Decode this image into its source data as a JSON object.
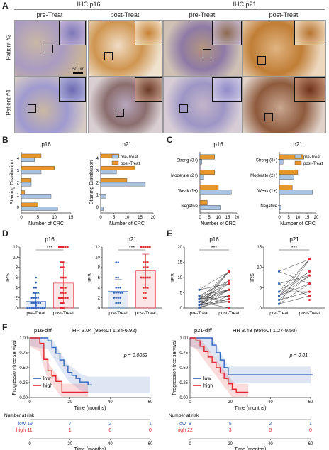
{
  "panels": {
    "A": "A",
    "B": "B",
    "C": "C",
    "D": "D",
    "E": "E",
    "F": "F"
  },
  "header": {
    "p16": "IHC p16",
    "p21": "IHC p21",
    "pre": "pre-Treat",
    "post": "post-Treat"
  },
  "rows": {
    "p3": "Patient #3",
    "p4": "Patient #4"
  },
  "scalebar": "50 μm",
  "colors": {
    "pre": "#a9c4e3",
    "post": "#e7962c",
    "low": "#2f63b8",
    "high": "#e0262e",
    "grey": "#555555"
  },
  "chart_data": [
    {
      "id": "B-p16",
      "type": "bar",
      "orientation": "horizontal",
      "title": "p16",
      "categories": [
        "0",
        "1",
        "2",
        "3",
        "4"
      ],
      "ylabel": "Staining Distribution",
      "xlabel": "Number of CRC",
      "xlim": [
        0,
        15
      ],
      "xticks": [
        0,
        5,
        10,
        15
      ],
      "series": [
        {
          "name": "pre-Treat",
          "values": [
            11,
            9,
            3,
            6,
            4
          ]
        },
        {
          "name": "post-Treat",
          "values": [
            5,
            1,
            3,
            10,
            6
          ]
        }
      ]
    },
    {
      "id": "B-p21",
      "type": "bar",
      "orientation": "horizontal",
      "title": "p21",
      "categories": [
        "0",
        "1",
        "2",
        "3",
        "4"
      ],
      "ylabel": "Staining Distribution",
      "xlabel": "Number of CRC",
      "xlim": [
        0,
        20
      ],
      "xticks": [
        0,
        5,
        10,
        15,
        20
      ],
      "series": [
        {
          "name": "pre-Treat",
          "values": [
            1,
            2,
            17,
            6,
            0
          ]
        },
        {
          "name": "post-Treat",
          "values": [
            0,
            0,
            10,
            13,
            7
          ]
        }
      ],
      "legend": [
        "pre-Treat",
        "post-Treat"
      ]
    },
    {
      "id": "C-p16",
      "type": "bar",
      "orientation": "horizontal",
      "title": "p16",
      "categories": [
        "Negative",
        "Weak (1+)",
        "Moderate (2+)",
        "Strong (3+)"
      ],
      "xlabel": "Number of CRC",
      "xlim": [
        0,
        20
      ],
      "xticks": [
        0,
        5,
        10,
        15,
        20
      ],
      "series": [
        {
          "name": "pre-Treat",
          "values": [
            11,
            17,
            2,
            1
          ]
        },
        {
          "name": "post-Treat",
          "values": [
            4,
            10,
            8,
            8
          ]
        }
      ]
    },
    {
      "id": "C-p21",
      "type": "bar",
      "orientation": "horizontal",
      "title": "p21",
      "categories": [
        "Negative",
        "Weak (1+)",
        "Moderate (2+)",
        "Strong (3+)"
      ],
      "xlabel": "Number of CRC",
      "xlim": [
        0,
        20
      ],
      "xticks": [
        0,
        5,
        10,
        15,
        20
      ],
      "series": [
        {
          "name": "pre-Treat",
          "values": [
            1,
            18,
            8,
            2
          ]
        },
        {
          "name": "post-Treat",
          "values": [
            0,
            7,
            10,
            13
          ]
        }
      ],
      "legend": [
        "pre-Treat",
        "post-Treat"
      ]
    },
    {
      "id": "D-p16",
      "type": "scatter",
      "title": "p16",
      "ylabel": "IRS",
      "ylim": [
        0,
        12
      ],
      "yticks": [
        0,
        2,
        4,
        6,
        8,
        10,
        12
      ],
      "categories": [
        "pre-Treat",
        "post-Treat"
      ],
      "sig": "***",
      "means": [
        1.3,
        4.9
      ],
      "sd": [
        1.6,
        4.0
      ],
      "points": [
        [
          0,
          0,
          0,
          0,
          0,
          0,
          0,
          0,
          0,
          0.5,
          1,
          1,
          1,
          1,
          1,
          2,
          2,
          2,
          2,
          3,
          3,
          3,
          4,
          4,
          5,
          6
        ],
        [
          0,
          0,
          1,
          1,
          2,
          2,
          2,
          2,
          2,
          3,
          3,
          3,
          4,
          4,
          4,
          6,
          6,
          6,
          8,
          8,
          9,
          9,
          12,
          12,
          12,
          12,
          12
        ]
      ]
    },
    {
      "id": "D-p21",
      "type": "scatter",
      "title": "p21",
      "ylabel": "IRS",
      "ylim": [
        0,
        12
      ],
      "yticks": [
        0,
        2,
        4,
        6,
        8,
        10,
        12
      ],
      "categories": [
        "pre-Treat",
        "post-Treat"
      ],
      "sig": "***",
      "means": [
        3.3,
        7.3
      ],
      "sd": [
        2.3,
        3.3
      ],
      "points": [
        [
          1,
          1,
          1,
          2,
          2,
          2,
          2,
          3,
          3,
          3,
          3,
          3,
          4,
          4,
          4,
          6,
          6,
          9,
          9
        ],
        [
          2,
          2,
          3,
          3,
          4,
          4,
          4,
          6,
          6,
          6,
          6,
          6,
          8,
          8,
          8,
          9,
          9,
          9,
          12,
          12,
          12,
          12,
          12
        ]
      ]
    },
    {
      "id": "E-p16",
      "type": "line",
      "title": "p16",
      "ylabel": "IRS",
      "ylim": [
        0,
        20
      ],
      "yticks": [
        0,
        5,
        10,
        15,
        20
      ],
      "categories": [
        "pre-Treat",
        "post-Treat"
      ],
      "sig": "***",
      "pairs": [
        [
          0,
          12
        ],
        [
          0,
          9
        ],
        [
          0,
          6
        ],
        [
          0,
          4
        ],
        [
          1,
          12
        ],
        [
          1,
          8
        ],
        [
          1,
          3
        ],
        [
          2,
          6
        ],
        [
          2,
          9
        ],
        [
          2,
          4
        ],
        [
          3,
          12
        ],
        [
          3,
          6
        ],
        [
          3,
          8
        ],
        [
          4,
          9
        ],
        [
          4,
          2
        ],
        [
          4,
          6
        ],
        [
          6,
          12
        ],
        [
          6,
          8
        ],
        [
          1,
          2
        ],
        [
          2,
          0
        ],
        [
          0,
          3
        ],
        [
          3,
          4
        ],
        [
          2,
          12
        ],
        [
          1,
          6
        ]
      ]
    },
    {
      "id": "E-p21",
      "type": "line",
      "title": "p21",
      "ylabel": "IRS",
      "ylim": [
        0,
        15
      ],
      "yticks": [
        0,
        5,
        10,
        15
      ],
      "categories": [
        "pre-Treat",
        "post-Treat"
      ],
      "sig": "***",
      "pairs": [
        [
          1,
          12
        ],
        [
          1,
          6
        ],
        [
          2,
          8
        ],
        [
          2,
          4
        ],
        [
          3,
          12
        ],
        [
          3,
          9
        ],
        [
          3,
          6
        ],
        [
          4,
          9
        ],
        [
          4,
          12
        ],
        [
          6,
          8
        ],
        [
          6,
          3
        ],
        [
          9,
          12
        ],
        [
          9,
          6
        ],
        [
          2,
          2
        ],
        [
          1,
          3
        ],
        [
          4,
          4
        ],
        [
          3,
          8
        ]
      ]
    },
    {
      "id": "F-p16",
      "type": "line",
      "title": "p16-diff",
      "stat": "HR 3.04 (95%CI 1.34-6.92)",
      "pvalue": "p = 0.0053",
      "ylabel": "Progression-free survival",
      "xlabel": "Time (months)",
      "xlim": [
        0,
        60
      ],
      "xticks": [
        0,
        20,
        40,
        60
      ],
      "ylim": [
        0,
        1
      ],
      "yticks": [
        "0.00",
        "0.25",
        "0.50",
        "0.75",
        "1.00"
      ],
      "series": [
        {
          "name": "low",
          "x": [
            0,
            9,
            11,
            13,
            15,
            17,
            19,
            21,
            23,
            25,
            29,
            31
          ],
          "y": [
            1,
            0.95,
            0.84,
            0.74,
            0.63,
            0.53,
            0.42,
            0.37,
            0.32,
            0.26,
            0.21,
            0.21
          ]
        },
        {
          "name": "high",
          "x": [
            0,
            5,
            7,
            9,
            11,
            13,
            16,
            29
          ],
          "y": [
            1,
            0.91,
            0.64,
            0.45,
            0.36,
            0.27,
            0.09,
            0.09
          ]
        }
      ],
      "risk_title": "Number at risk",
      "risk_times": [
        0,
        20,
        40,
        60
      ],
      "risk": [
        {
          "name": "low",
          "values": [
            "19",
            "7",
            "2",
            "1"
          ]
        },
        {
          "name": "high",
          "values": [
            "11",
            "1",
            "0",
            "0"
          ]
        }
      ]
    },
    {
      "id": "F-p21",
      "type": "line",
      "title": "p21-diff",
      "stat": "HR 3.48 (95%CI 1.27-9.50)",
      "pvalue": "p = 0.01",
      "ylabel": "Progression-free survival",
      "xlabel": "Time (months)",
      "xlim": [
        0,
        60
      ],
      "xticks": [
        0,
        20,
        40,
        60
      ],
      "ylim": [
        0,
        1
      ],
      "yticks": [
        "0.00",
        "0.25",
        "0.50",
        "0.75",
        "1.00"
      ],
      "series": [
        {
          "name": "low",
          "x": [
            0,
            11,
            13,
            15,
            17,
            19,
            61
          ],
          "y": [
            1,
            0.88,
            0.75,
            0.63,
            0.5,
            0.38,
            0.38
          ]
        },
        {
          "name": "high",
          "x": [
            0,
            3,
            5,
            7,
            9,
            11,
            13,
            15,
            17,
            19,
            21,
            23,
            29
          ],
          "y": [
            1,
            0.95,
            0.86,
            0.77,
            0.68,
            0.59,
            0.5,
            0.41,
            0.32,
            0.23,
            0.14,
            0.09,
            0.09
          ]
        }
      ],
      "risk_title": "Number at risk",
      "risk_times": [
        0,
        20,
        40,
        60
      ],
      "risk": [
        {
          "name": "low",
          "values": [
            "8",
            "5",
            "2",
            "1"
          ]
        },
        {
          "name": "high",
          "values": [
            "22",
            "3",
            "0",
            "0"
          ]
        }
      ]
    }
  ]
}
